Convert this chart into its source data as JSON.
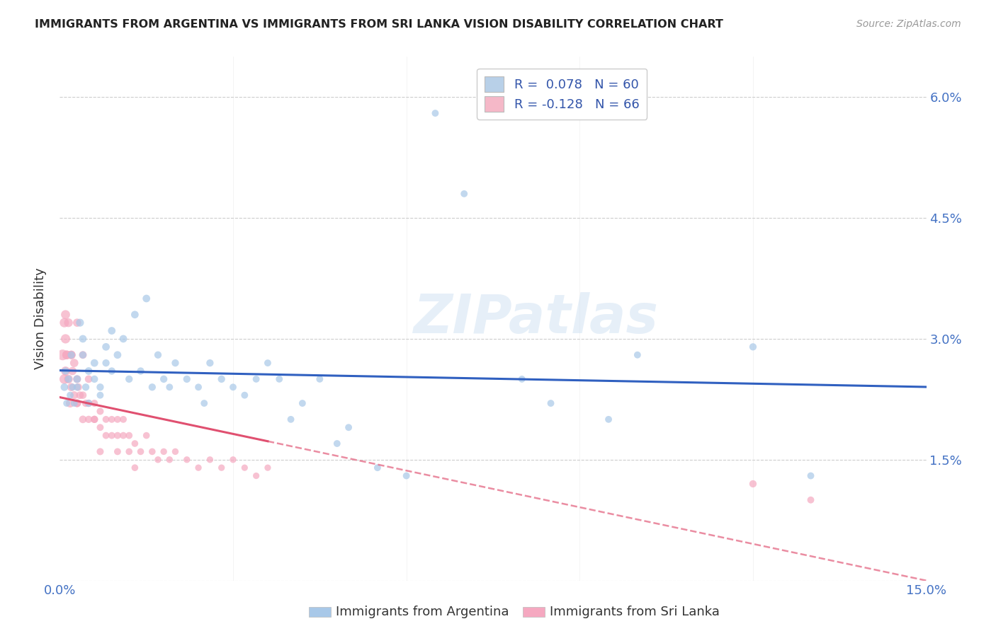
{
  "title": "IMMIGRANTS FROM ARGENTINA VS IMMIGRANTS FROM SRI LANKA VISION DISABILITY CORRELATION CHART",
  "source": "Source: ZipAtlas.com",
  "ylabel": "Vision Disability",
  "xlim": [
    0.0,
    0.15
  ],
  "ylim": [
    0.0,
    0.065
  ],
  "legend_label1": "R =  0.078   N = 60",
  "legend_label2": "R = -0.128   N = 66",
  "legend_color1": "#b8d0e8",
  "legend_color2": "#f5b8c8",
  "scatter1_color": "#a8c8e8",
  "scatter2_color": "#f5a8c0",
  "line1_color": "#3060c0",
  "line2_color": "#e05070",
  "watermark": "ZIPatlas",
  "bottom_label1": "Immigrants from Argentina",
  "bottom_label2": "Immigrants from Sri Lanka",
  "R1": 0.078,
  "R2": -0.128,
  "N1": 60,
  "N2": 66,
  "argentina_x": [
    0.0008,
    0.001,
    0.0012,
    0.0015,
    0.0018,
    0.002,
    0.0022,
    0.0025,
    0.003,
    0.003,
    0.0035,
    0.004,
    0.004,
    0.0045,
    0.005,
    0.005,
    0.006,
    0.006,
    0.007,
    0.007,
    0.008,
    0.008,
    0.009,
    0.009,
    0.01,
    0.011,
    0.012,
    0.013,
    0.014,
    0.015,
    0.016,
    0.017,
    0.018,
    0.019,
    0.02,
    0.022,
    0.024,
    0.025,
    0.026,
    0.028,
    0.03,
    0.032,
    0.034,
    0.036,
    0.038,
    0.04,
    0.042,
    0.045,
    0.048,
    0.05,
    0.055,
    0.06,
    0.065,
    0.07,
    0.08,
    0.085,
    0.095,
    0.1,
    0.12,
    0.13
  ],
  "argentina_y": [
    0.024,
    0.026,
    0.022,
    0.025,
    0.023,
    0.028,
    0.024,
    0.022,
    0.025,
    0.024,
    0.032,
    0.03,
    0.028,
    0.024,
    0.026,
    0.022,
    0.027,
    0.025,
    0.024,
    0.023,
    0.029,
    0.027,
    0.031,
    0.026,
    0.028,
    0.03,
    0.025,
    0.033,
    0.026,
    0.035,
    0.024,
    0.028,
    0.025,
    0.024,
    0.027,
    0.025,
    0.024,
    0.022,
    0.027,
    0.025,
    0.024,
    0.023,
    0.025,
    0.027,
    0.025,
    0.02,
    0.022,
    0.025,
    0.017,
    0.019,
    0.014,
    0.013,
    0.058,
    0.048,
    0.025,
    0.022,
    0.02,
    0.028,
    0.029,
    0.013
  ],
  "argentina_size": [
    60,
    55,
    50,
    55,
    50,
    55,
    50,
    50,
    60,
    55,
    65,
    60,
    55,
    55,
    60,
    55,
    60,
    55,
    55,
    50,
    60,
    55,
    60,
    55,
    60,
    60,
    55,
    60,
    55,
    60,
    55,
    55,
    55,
    50,
    55,
    55,
    50,
    50,
    55,
    55,
    50,
    50,
    50,
    50,
    50,
    50,
    50,
    50,
    50,
    50,
    50,
    50,
    50,
    50,
    50,
    50,
    50,
    50,
    55,
    50
  ],
  "srilanka_x": [
    0.0005,
    0.0008,
    0.001,
    0.001,
    0.0012,
    0.0015,
    0.0018,
    0.002,
    0.002,
    0.0022,
    0.0025,
    0.003,
    0.003,
    0.0032,
    0.0035,
    0.004,
    0.004,
    0.0045,
    0.005,
    0.005,
    0.006,
    0.006,
    0.007,
    0.007,
    0.008,
    0.008,
    0.009,
    0.009,
    0.01,
    0.01,
    0.011,
    0.011,
    0.012,
    0.012,
    0.013,
    0.014,
    0.015,
    0.016,
    0.017,
    0.018,
    0.019,
    0.02,
    0.022,
    0.024,
    0.026,
    0.028,
    0.03,
    0.032,
    0.034,
    0.036,
    0.0008,
    0.001,
    0.0012,
    0.0015,
    0.002,
    0.0025,
    0.003,
    0.003,
    0.004,
    0.005,
    0.006,
    0.007,
    0.01,
    0.013,
    0.12,
    0.13
  ],
  "srilanka_y": [
    0.028,
    0.025,
    0.03,
    0.026,
    0.028,
    0.025,
    0.022,
    0.028,
    0.024,
    0.026,
    0.023,
    0.025,
    0.022,
    0.024,
    0.023,
    0.02,
    0.023,
    0.022,
    0.022,
    0.02,
    0.02,
    0.022,
    0.021,
    0.019,
    0.02,
    0.018,
    0.02,
    0.018,
    0.018,
    0.02,
    0.018,
    0.02,
    0.018,
    0.016,
    0.017,
    0.016,
    0.018,
    0.016,
    0.015,
    0.016,
    0.015,
    0.016,
    0.015,
    0.014,
    0.015,
    0.014,
    0.015,
    0.014,
    0.013,
    0.014,
    0.032,
    0.033,
    0.028,
    0.032,
    0.028,
    0.027,
    0.032,
    0.022,
    0.028,
    0.025,
    0.02,
    0.016,
    0.016,
    0.014,
    0.012,
    0.01
  ],
  "srilanka_size": [
    120,
    100,
    90,
    85,
    80,
    80,
    75,
    75,
    70,
    70,
    65,
    65,
    60,
    60,
    60,
    60,
    58,
    55,
    55,
    55,
    55,
    52,
    52,
    50,
    50,
    50,
    50,
    50,
    50,
    50,
    50,
    50,
    50,
    48,
    48,
    48,
    48,
    48,
    46,
    46,
    46,
    46,
    45,
    45,
    45,
    45,
    45,
    44,
    44,
    44,
    90,
    85,
    80,
    80,
    75,
    72,
    70,
    65,
    62,
    60,
    55,
    52,
    50,
    48,
    55,
    50
  ]
}
